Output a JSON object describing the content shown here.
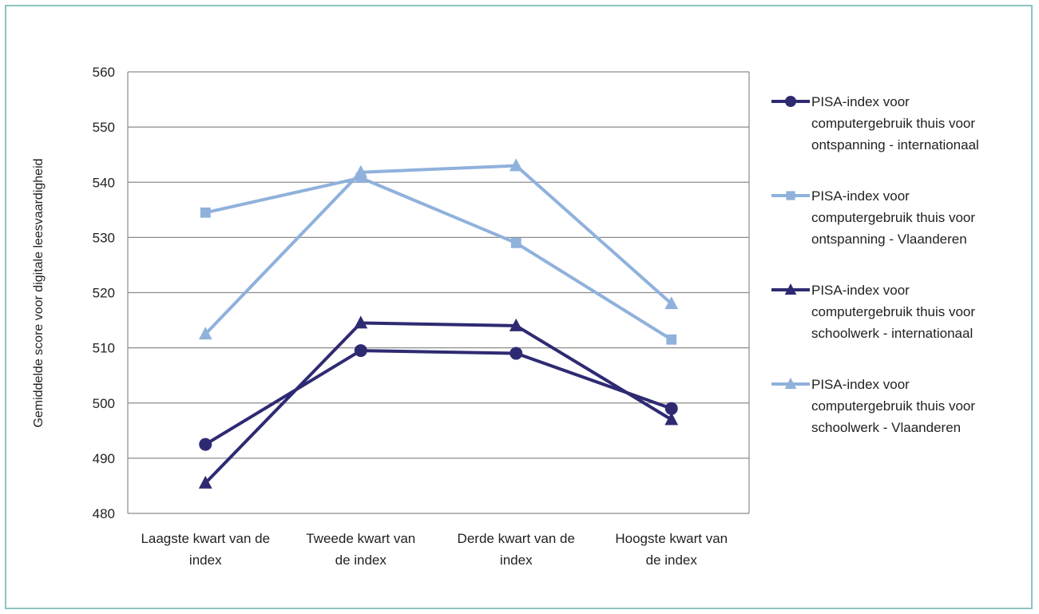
{
  "chart_data": {
    "type": "line",
    "ylabel": "Gemiddelde score voor digitale leesvaardigheid",
    "ylim": [
      480,
      560
    ],
    "yticks": [
      480,
      490,
      500,
      510,
      520,
      530,
      540,
      550,
      560
    ],
    "grid": true,
    "legend_position": "right",
    "categories": [
      [
        "Laagste kwart van de",
        "index"
      ],
      [
        "Tweede kwart van",
        "de index"
      ],
      [
        "Derde kwart van de",
        "index"
      ],
      [
        "Hoogste kwart van",
        "de index"
      ]
    ],
    "series": [
      {
        "name": [
          "PISA-index voor",
          "computergebruik thuis voor",
          "ontspanning - internationaal"
        ],
        "marker": "circle",
        "color": "#2e2a72",
        "values": [
          492.5,
          509.5,
          509,
          499
        ]
      },
      {
        "name": [
          "PISA-index voor",
          "computergebruik thuis voor",
          "ontspanning - Vlaanderen"
        ],
        "marker": "square",
        "color": "#8fb1dc",
        "values": [
          534.5,
          540.8,
          529,
          511.5
        ]
      },
      {
        "name": [
          "PISA-index voor",
          "computergebruik thuis voor",
          "schoolwerk - internationaal"
        ],
        "marker": "triangle",
        "color": "#2e2a72",
        "values": [
          485.5,
          514.5,
          514,
          497
        ]
      },
      {
        "name": [
          "PISA-index voor",
          "computergebruik thuis voor",
          "schoolwerk - Vlaanderen"
        ],
        "marker": "triangle",
        "color": "#8fb1dc",
        "values": [
          512.5,
          541.8,
          543,
          518
        ]
      }
    ]
  }
}
